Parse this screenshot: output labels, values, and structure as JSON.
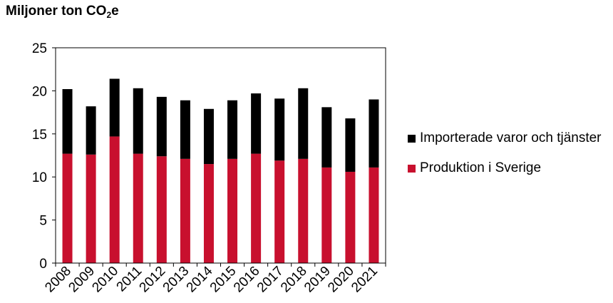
{
  "chart_data": {
    "type": "bar",
    "stacked": true,
    "title_main": "Miljoner ton CO",
    "title_sub": "2",
    "title_tail": "e",
    "categories": [
      "2008",
      "2009",
      "2010",
      "2011",
      "2012",
      "2013",
      "2014",
      "2015",
      "2016",
      "2017",
      "2018",
      "2019",
      "2020",
      "2021"
    ],
    "series": [
      {
        "name": "Produktion i Sverige",
        "color": "#c8102e",
        "values": [
          12.7,
          12.6,
          14.7,
          12.7,
          12.4,
          12.1,
          11.5,
          12.1,
          12.7,
          11.9,
          12.1,
          11.1,
          10.6,
          11.1
        ]
      },
      {
        "name": "Importerade varor och tjänster",
        "color": "#000000",
        "values": [
          7.5,
          5.6,
          6.7,
          7.6,
          6.9,
          6.8,
          6.4,
          6.8,
          7.0,
          7.2,
          8.2,
          7.0,
          6.2,
          7.9
        ]
      }
    ],
    "ylim": [
      0,
      25
    ],
    "yticks": [
      "0",
      "5",
      "10",
      "15",
      "20",
      "25"
    ],
    "grid": false,
    "legend_position": "right"
  }
}
